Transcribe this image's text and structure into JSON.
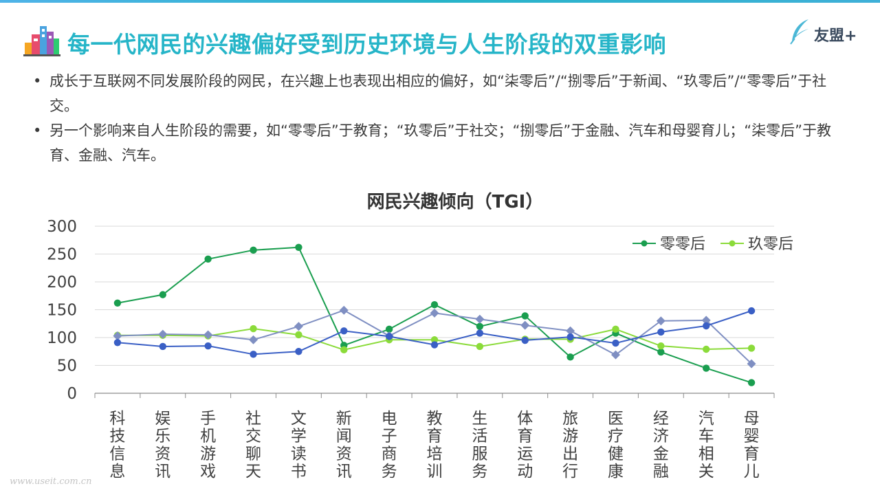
{
  "header": {
    "title": "每一代网民的兴趣偏好受到历史环境与人生阶段的双重影响",
    "logo_text": "友盟+"
  },
  "bullets": [
    "成长于互联网不同发展阶段的网民，在兴趣上也表现出相应的偏好，如“柒零后”/“捌零后”于新闻、“玖零后”/“零零后”于社交。",
    "另一个影响来自人生阶段的需要，如“零零后”于教育；“玖零后”于社交；“捌零后”于金融、汽车和母婴育儿；“柒零后”于教育、金融、汽车。"
  ],
  "footer": {
    "watermark": "www.useit.com.cn"
  },
  "chart_data": {
    "type": "line",
    "title": "网民兴趣倾向（TGI）",
    "xlabel": "",
    "ylabel": "",
    "ylim": [
      0,
      300
    ],
    "yticks": [
      0,
      50,
      100,
      150,
      200,
      250,
      300
    ],
    "grid": true,
    "legend_position": "top-right",
    "categories": [
      "科技信息",
      "娱乐资讯",
      "手机游戏",
      "社交聊天",
      "文学读书",
      "新闻资讯",
      "电子商务",
      "教育培训",
      "生活服务",
      "体育运动",
      "旅游出行",
      "医疗健康",
      "经济金融",
      "汽车相关",
      "母婴育儿"
    ],
    "series": [
      {
        "name": "零零后",
        "color": "#1a9e4f",
        "marker": "circle",
        "legend": true,
        "values": [
          162,
          177,
          241,
          257,
          262,
          86,
          115,
          159,
          120,
          139,
          65,
          108,
          74,
          45,
          19
        ]
      },
      {
        "name": "玖零后",
        "color": "#8bdb3a",
        "marker": "circle",
        "legend": true,
        "values": [
          104,
          104,
          103,
          116,
          105,
          78,
          96,
          96,
          84,
          97,
          97,
          115,
          85,
          79,
          81
        ]
      },
      {
        "name": "",
        "color": "#7f8fc2",
        "marker": "diamond",
        "legend": false,
        "values": [
          103,
          106,
          105,
          96,
          120,
          149,
          103,
          144,
          133,
          122,
          112,
          69,
          130,
          131,
          53
        ]
      },
      {
        "name": "",
        "color": "#3a5fc5",
        "marker": "circle",
        "legend": false,
        "values": [
          91,
          84,
          85,
          70,
          75,
          112,
          102,
          87,
          108,
          95,
          101,
          90,
          110,
          121,
          148
        ]
      }
    ]
  }
}
